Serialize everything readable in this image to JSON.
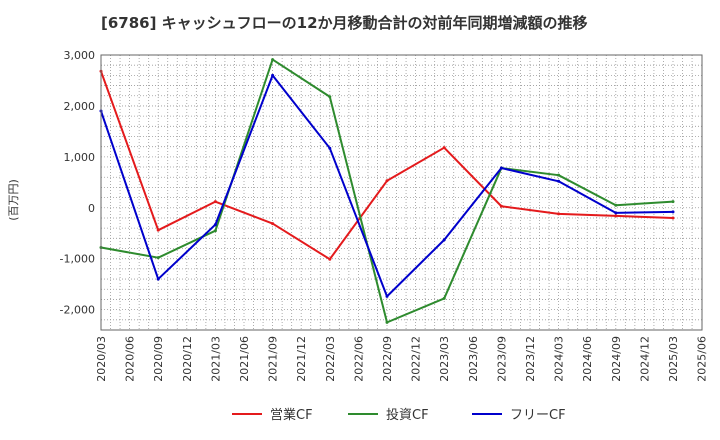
{
  "chart_data": {
    "type": "line",
    "title": "[6786]  キャッシュフローの12か月移動合計の対前年同期増減額の推移",
    "ylabel": "(百万円)",
    "xlabel": "",
    "ylim": [
      -2400,
      3000
    ],
    "yticks": [
      3000,
      2000,
      1000,
      0,
      -1000,
      -2000
    ],
    "ytick_labels": [
      "3,000",
      "2,000",
      "1,000",
      "0",
      "-1,000",
      "-2,000"
    ],
    "categories": [
      "2020/03",
      "2020/06",
      "2020/09",
      "2020/12",
      "2021/03",
      "2021/06",
      "2021/09",
      "2021/12",
      "2022/03",
      "2022/06",
      "2022/09",
      "2022/12",
      "2023/03",
      "2023/06",
      "2023/09",
      "2023/12",
      "2024/03",
      "2024/06",
      "2024/09",
      "2024/12",
      "2025/03",
      "2025/06"
    ],
    "grid": true,
    "legend_position": "bottom-center",
    "series": [
      {
        "name": "営業CF",
        "color": "#e41a1c",
        "values": [
          2680,
          null,
          -440,
          null,
          120,
          null,
          -310,
          null,
          -1010,
          null,
          530,
          null,
          1180,
          null,
          30,
          null,
          -120,
          null,
          -160,
          null,
          -200,
          null
        ]
      },
      {
        "name": "投資CF",
        "color": "#2e8b2e",
        "values": [
          -780,
          null,
          -980,
          null,
          -450,
          null,
          2910,
          null,
          2180,
          null,
          -2250,
          null,
          -1780,
          null,
          780,
          null,
          640,
          null,
          50,
          null,
          120,
          null
        ]
      },
      {
        "name": "フリーCF",
        "color": "#0000cc",
        "values": [
          1900,
          null,
          -1400,
          null,
          -330,
          null,
          2600,
          null,
          1170,
          null,
          -1740,
          null,
          -630,
          null,
          780,
          null,
          520,
          null,
          -100,
          null,
          -80,
          null
        ]
      }
    ]
  }
}
